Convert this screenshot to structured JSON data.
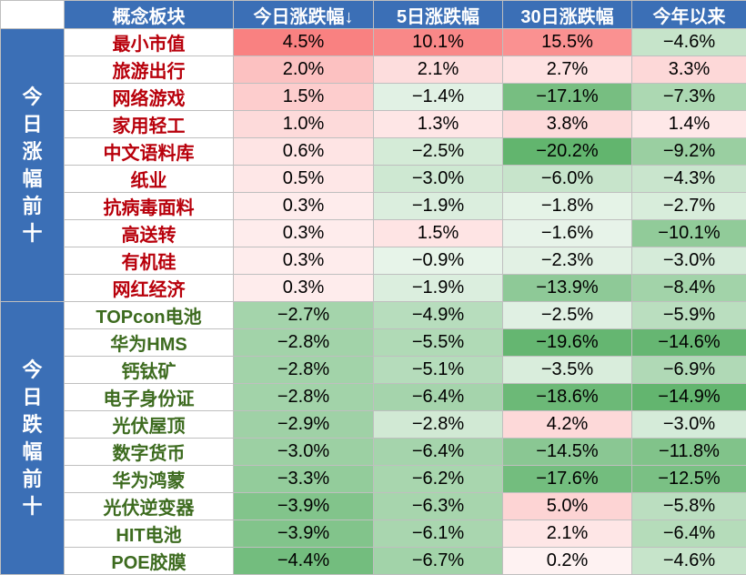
{
  "headers": [
    "概念板块",
    "今日涨跌幅↓",
    "5日涨跌幅",
    "30日涨跌幅",
    "今年以来"
  ],
  "groups": [
    {
      "label": "今日涨幅前十",
      "rows": [
        {
          "name": "最小市值",
          "today": "4.5%",
          "d5": "10.1%",
          "d30": "15.5%",
          "ytd": "−4.6%"
        },
        {
          "name": "旅游出行",
          "today": "2.0%",
          "d5": "2.1%",
          "d30": "2.7%",
          "ytd": "3.3%"
        },
        {
          "name": "网络游戏",
          "today": "1.5%",
          "d5": "−1.4%",
          "d30": "−17.1%",
          "ytd": "−7.3%"
        },
        {
          "name": "家用轻工",
          "today": "1.0%",
          "d5": "1.3%",
          "d30": "3.8%",
          "ytd": "1.4%"
        },
        {
          "name": "中文语料库",
          "today": "0.6%",
          "d5": "−2.5%",
          "d30": "−20.2%",
          "ytd": "−9.2%"
        },
        {
          "name": "纸业",
          "today": "0.5%",
          "d5": "−3.0%",
          "d30": "−6.0%",
          "ytd": "−4.3%"
        },
        {
          "name": "抗病毒面料",
          "today": "0.3%",
          "d5": "−1.9%",
          "d30": "−1.8%",
          "ytd": "−2.7%"
        },
        {
          "name": "高送转",
          "today": "0.3%",
          "d5": "1.5%",
          "d30": "−1.6%",
          "ytd": "−10.1%"
        },
        {
          "name": "有机硅",
          "today": "0.3%",
          "d5": "−0.9%",
          "d30": "−2.3%",
          "ytd": "−3.0%"
        },
        {
          "name": "网红经济",
          "today": "0.3%",
          "d5": "−1.9%",
          "d30": "−13.9%",
          "ytd": "−8.4%"
        }
      ]
    },
    {
      "label": "今日跌幅前十",
      "rows": [
        {
          "name": "TOPcon电池",
          "today": "−2.7%",
          "d5": "−4.9%",
          "d30": "−2.5%",
          "ytd": "−5.9%"
        },
        {
          "name": "华为HMS",
          "today": "−2.8%",
          "d5": "−5.5%",
          "d30": "−19.6%",
          "ytd": "−14.6%"
        },
        {
          "name": "钙钛矿",
          "today": "−2.8%",
          "d5": "−5.1%",
          "d30": "−3.5%",
          "ytd": "−6.9%"
        },
        {
          "name": "电子身份证",
          "today": "−2.8%",
          "d5": "−6.4%",
          "d30": "−18.6%",
          "ytd": "−14.9%"
        },
        {
          "name": "光伏屋顶",
          "today": "−2.9%",
          "d5": "−2.8%",
          "d30": "4.2%",
          "ytd": "−3.0%"
        },
        {
          "name": "数字货币",
          "today": "−3.0%",
          "d5": "−6.4%",
          "d30": "−14.5%",
          "ytd": "−11.8%"
        },
        {
          "name": "华为鸿蒙",
          "today": "−3.3%",
          "d5": "−6.2%",
          "d30": "−17.6%",
          "ytd": "−12.5%"
        },
        {
          "name": "光伏逆变器",
          "today": "−3.9%",
          "d5": "−6.3%",
          "d30": "5.0%",
          "ytd": "−5.8%"
        },
        {
          "name": "HIT电池",
          "today": "−3.9%",
          "d5": "−6.1%",
          "d30": "2.1%",
          "ytd": "−6.4%"
        },
        {
          "name": "POE胶膜",
          "today": "−4.4%",
          "d5": "−6.7%",
          "d30": "0.2%",
          "ytd": "−4.6%"
        }
      ]
    }
  ],
  "colors": {
    "header_bg": "#3b6fb6",
    "up_text": "#b8000b",
    "down_text": "#3d6b1f",
    "positive_max": "#f87171",
    "negative_max": "#5fb36b"
  }
}
